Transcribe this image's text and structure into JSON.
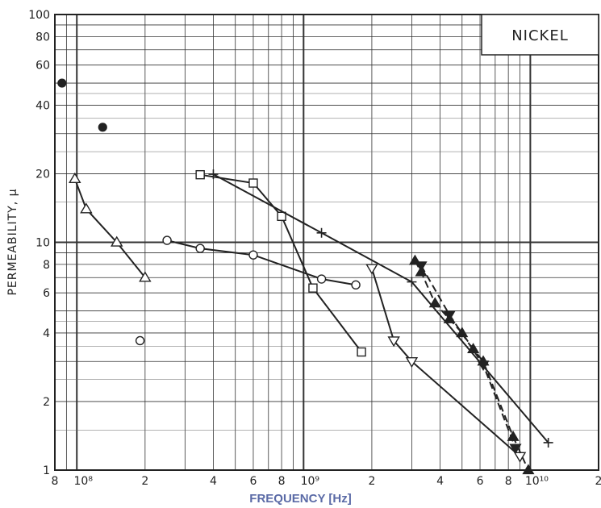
{
  "chart_data": {
    "type": "scatter",
    "title": "NICKEL",
    "xlabel": "FREQUENCY [Hz]",
    "ylabel": "PERMEABILITY, μ",
    "x_scale": "log",
    "y_scale": "log",
    "xlim": [
      80000000,
      20000000000
    ],
    "ylim": [
      1,
      100
    ],
    "x_tick_labels": [
      {
        "x": 80000000,
        "label": "8"
      },
      {
        "x": 100000000,
        "label": "10⁸"
      },
      {
        "x": 200000000,
        "label": "2"
      },
      {
        "x": 400000000,
        "label": "4"
      },
      {
        "x": 600000000,
        "label": "6"
      },
      {
        "x": 800000000,
        "label": "8"
      },
      {
        "x": 1000000000,
        "label": "10⁹"
      },
      {
        "x": 2000000000,
        "label": "2"
      },
      {
        "x": 4000000000,
        "label": "4"
      },
      {
        "x": 6000000000,
        "label": "6"
      },
      {
        "x": 8000000000,
        "label": "8"
      },
      {
        "x": 10000000000,
        "label": "10¹⁰"
      },
      {
        "x": 20000000000,
        "label": "2"
      }
    ],
    "y_tick_labels": [
      {
        "y": 1,
        "label": "1"
      },
      {
        "y": 2,
        "label": "2"
      },
      {
        "y": 4,
        "label": "4"
      },
      {
        "y": 6,
        "label": "6"
      },
      {
        "y": 8,
        "label": "8"
      },
      {
        "y": 10,
        "label": "10"
      },
      {
        "y": 20,
        "label": "20"
      },
      {
        "y": 40,
        "label": "40"
      },
      {
        "y": 60,
        "label": "60"
      },
      {
        "y": 80,
        "label": "80"
      },
      {
        "y": 100,
        "label": "100"
      }
    ],
    "grid": true,
    "legend": "none",
    "series": [
      {
        "marker": "filled-circle",
        "connected": false,
        "dash": false,
        "points": [
          [
            86000000,
            50
          ],
          [
            130000000,
            32
          ]
        ]
      },
      {
        "marker": "open-triangle-up",
        "connected": true,
        "dash": false,
        "points": [
          [
            98000000,
            19
          ],
          [
            110000000,
            14
          ],
          [
            150000000,
            10
          ],
          [
            200000000,
            7
          ]
        ]
      },
      {
        "marker": "open-circle",
        "connected": false,
        "dash": false,
        "points": [
          [
            190000000,
            3.7
          ]
        ]
      },
      {
        "marker": "open-circle",
        "connected": true,
        "dash": false,
        "points": [
          [
            250000000,
            10.2
          ],
          [
            350000000,
            9.4
          ],
          [
            600000000,
            8.8
          ],
          [
            1200000000,
            6.9
          ],
          [
            1700000000,
            6.5
          ]
        ]
      },
      {
        "marker": "open-square",
        "connected": true,
        "dash": false,
        "points": [
          [
            350000000,
            19.8
          ],
          [
            600000000,
            18.2
          ],
          [
            800000000,
            13
          ],
          [
            1100000000,
            6.3
          ],
          [
            1800000000,
            3.3
          ]
        ]
      },
      {
        "marker": "plus",
        "connected": true,
        "dash": false,
        "points": [
          [
            400000000,
            19.9
          ],
          [
            1200000000,
            11
          ],
          [
            3000000000,
            6.7
          ],
          [
            12000000000,
            1.32
          ]
        ]
      },
      {
        "marker": "open-triangle-down",
        "connected": true,
        "dash": false,
        "points": [
          [
            2000000000,
            7.7
          ],
          [
            2500000000,
            3.7
          ],
          [
            3000000000,
            3.0
          ],
          [
            9000000000,
            1.15
          ]
        ]
      },
      {
        "marker": "filled-triangle-up",
        "connected": true,
        "dash": true,
        "points": [
          [
            3100000000,
            8.3
          ],
          [
            3300000000,
            7.4
          ],
          [
            3800000000,
            5.4
          ],
          [
            4400000000,
            4.6
          ],
          [
            5000000000,
            4.0
          ],
          [
            5600000000,
            3.4
          ],
          [
            6200000000,
            3.0
          ],
          [
            8400000000,
            1.4
          ],
          [
            9800000000,
            1.0
          ]
        ]
      },
      {
        "marker": "filled-triangle-down",
        "connected": true,
        "dash": true,
        "points": [
          [
            3300000000,
            7.9
          ],
          [
            4400000000,
            4.8
          ],
          [
            6200000000,
            2.9
          ],
          [
            8600000000,
            1.25
          ]
        ]
      }
    ]
  }
}
